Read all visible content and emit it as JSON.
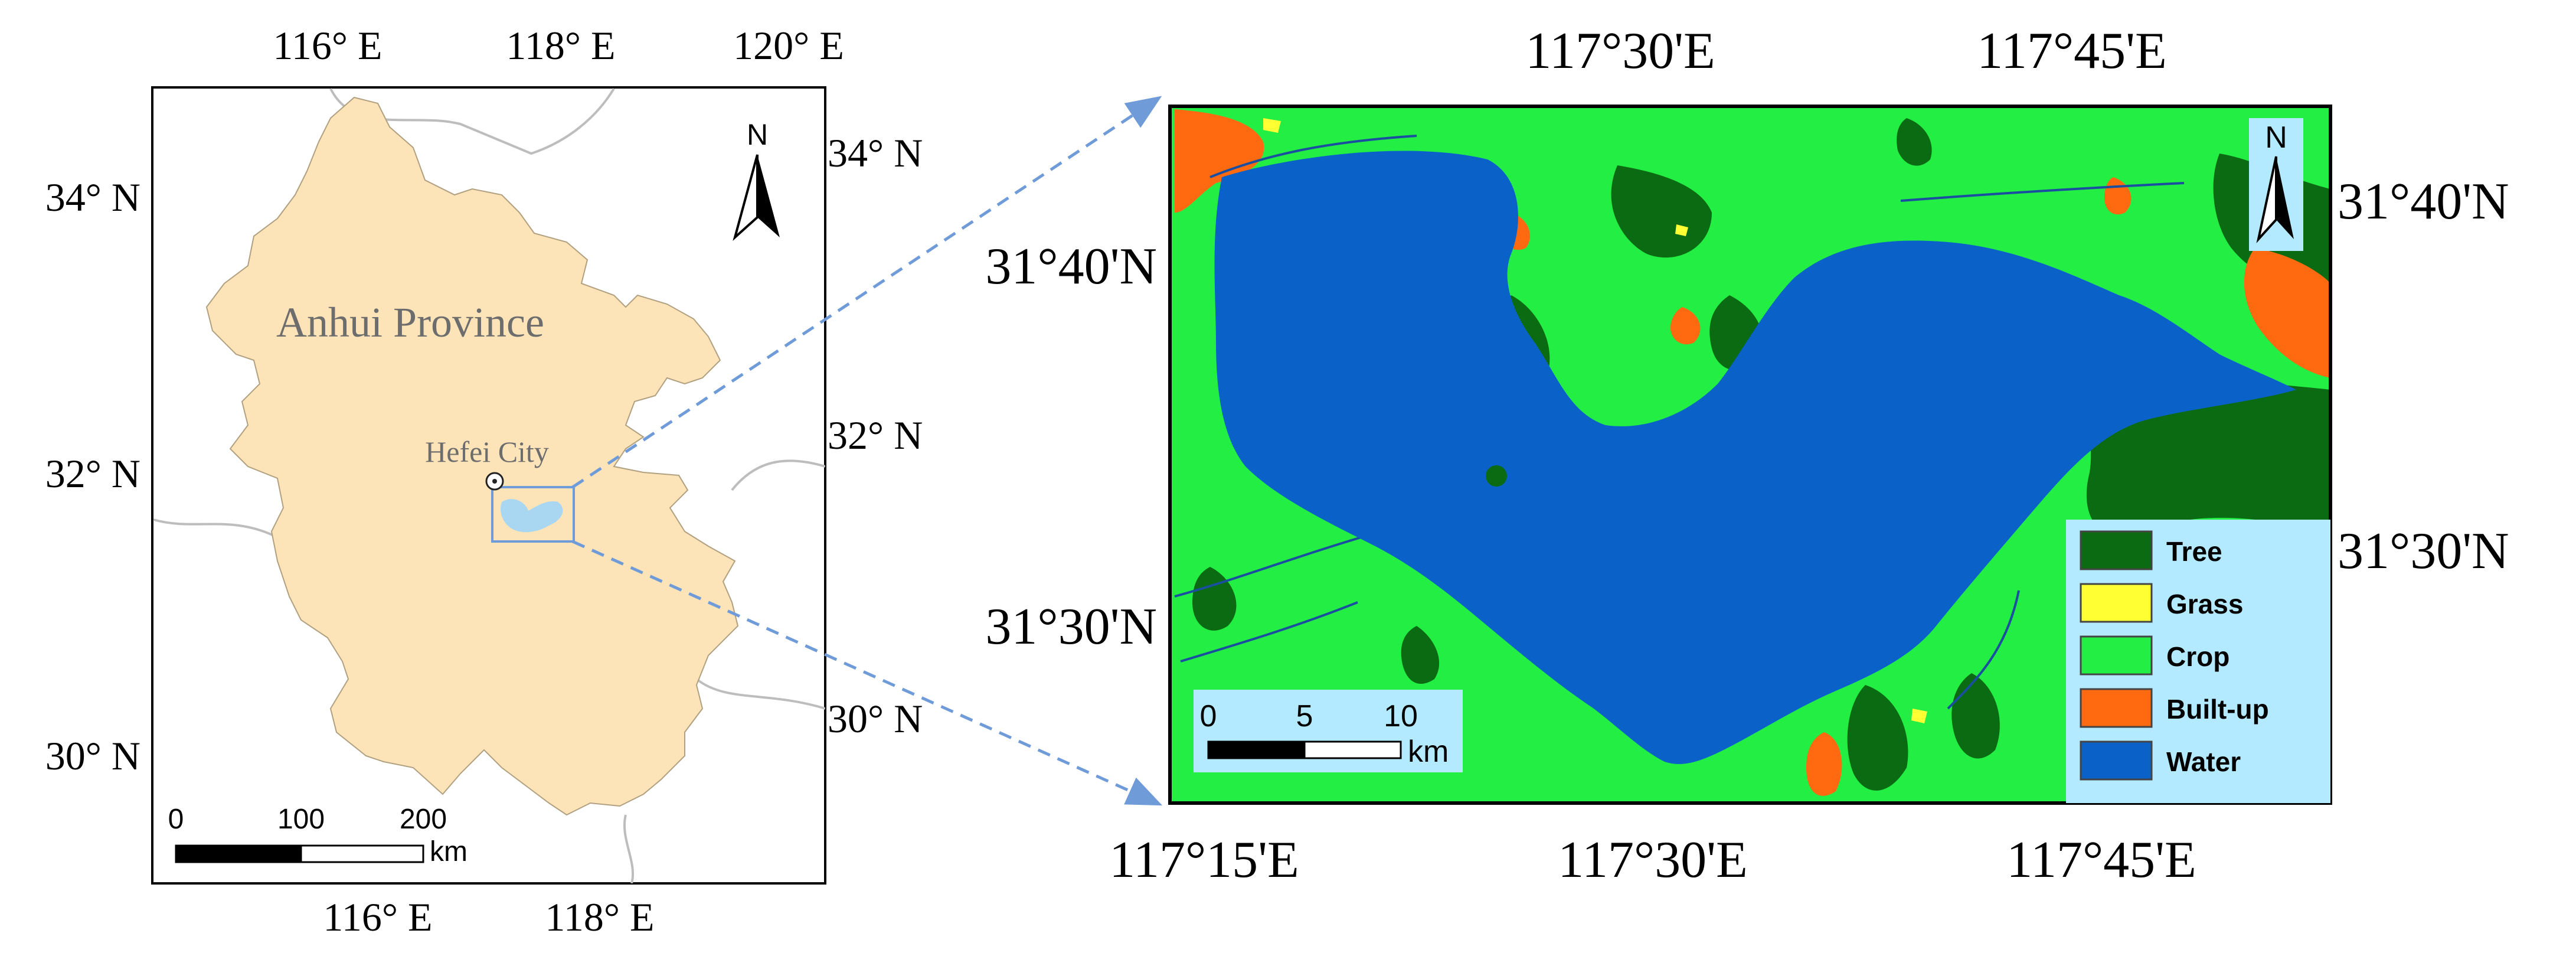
{
  "left_map": {
    "top_ticks": [
      "116° E",
      "118° E",
      "120° E"
    ],
    "bottom_ticks": [
      "116° E",
      "118° E"
    ],
    "left_ticks": [
      "34° N",
      "32° N",
      "30° N"
    ],
    "right_ticks": [
      "34° N",
      "32° N",
      "30° N"
    ],
    "province_label": "Anhui Province",
    "city_label": "Hefei City",
    "north_label": "N",
    "scalebar": {
      "values": [
        "0",
        "100",
        "200"
      ],
      "unit": "km"
    }
  },
  "right_map": {
    "top_ticks": [
      "117°30'E",
      "117°45'E"
    ],
    "bottom_ticks": [
      "117°15'E",
      "117°30'E",
      "117°45'E"
    ],
    "left_ticks": [
      "31°40'N",
      "31°30'N"
    ],
    "right_ticks": [
      "31°40'N",
      "31°30'N"
    ],
    "north_label": "N",
    "scalebar": {
      "values": [
        "0",
        "5",
        "10"
      ],
      "unit": "km"
    },
    "legend": [
      {
        "label": "Tree",
        "color": "#0b6b12"
      },
      {
        "label": "Grass",
        "color": "#ffff33"
      },
      {
        "label": "Crop",
        "color": "#22ee44"
      },
      {
        "label": "Built-up",
        "color": "#ff6a10"
      },
      {
        "label": "Water",
        "color": "#0a62c8"
      }
    ]
  },
  "colors": {
    "province_fill": "#fde4b8",
    "legend_bg": "#b3eaff",
    "callout": "#6f9bd8"
  }
}
